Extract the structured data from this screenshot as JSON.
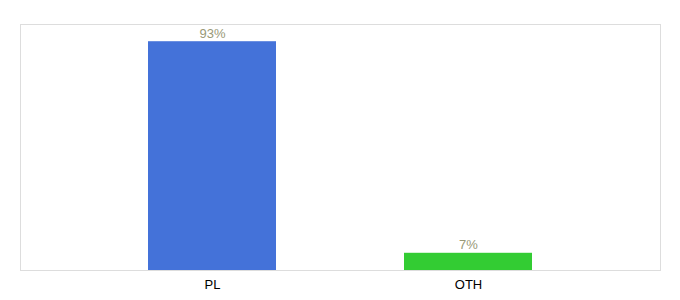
{
  "chart_data": {
    "type": "bar",
    "categories": [
      "PL",
      "OTH"
    ],
    "values": [
      93,
      7
    ],
    "value_labels": [
      "93%",
      "7%"
    ],
    "colors": [
      "#4472d9",
      "#33cc33"
    ],
    "ylim": [
      0,
      100
    ],
    "data_labels": true,
    "tick_labels": "x"
  }
}
